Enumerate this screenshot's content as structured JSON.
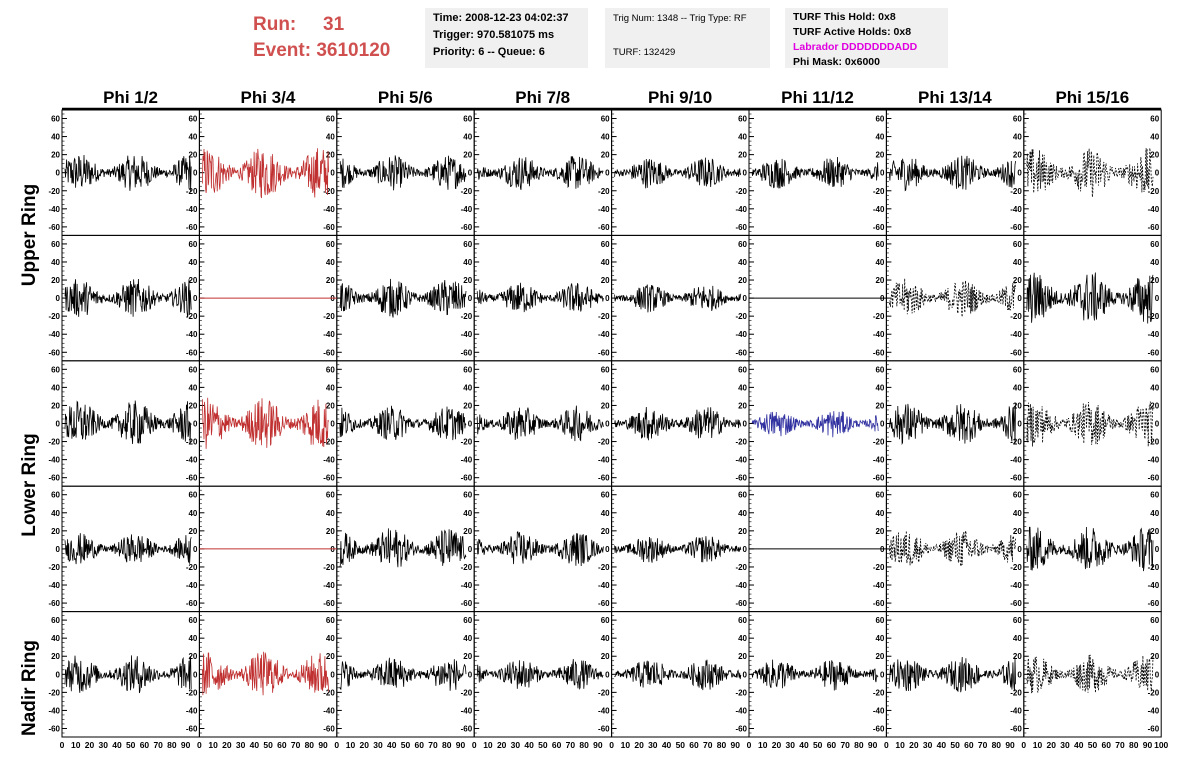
{
  "header": {
    "run_label": "Run:",
    "run_value": "31",
    "event_label": "Event:",
    "event_value": "3610120",
    "time": "Time: 2008-12-23 04:02:37",
    "trigger": "Trigger: 970.581075 ms",
    "priority": "Priority: 6 -- Queue: 6",
    "trig_num": "Trig Num: 1348 -- Trig Type: RF",
    "turf": "TURF: 132429",
    "turf_this_hold": "TURF This Hold: 0x8",
    "turf_active_holds": "TURF Active Holds: 0x8",
    "labrador": "Labrador DDDDDDDADD",
    "phi_mask": "Phi Mask: 0x6000",
    "labrador_color": "#e000e0",
    "run_color": "#d05050"
  },
  "columns": [
    "Phi 1/2",
    "Phi 3/4",
    "Phi 5/6",
    "Phi 7/8",
    "Phi 9/10",
    "Phi 11/12",
    "Phi 13/14",
    "Phi 15/16"
  ],
  "rows": [
    {
      "label": "Upper Ring"
    },
    {
      "label": "Lower Ring"
    },
    {
      "label": "Nadir Ring"
    }
  ],
  "chart_data": {
    "type": "line",
    "y_ticks": [
      "-60",
      "-40",
      "-20",
      "0",
      "20",
      "40",
      "60"
    ],
    "ylim": [
      -65,
      65
    ],
    "x_tick_labels": [
      "0",
      "10",
      "20",
      "30",
      "40",
      "50",
      "60",
      "70",
      "80",
      "90",
      "100"
    ],
    "xlim": [
      0,
      100
    ],
    "grid_rows": 5,
    "grid_cols": 8,
    "colors": {
      "normal": "#000000",
      "highlight_red": "#c03030",
      "highlight_blue": "#3030a0"
    },
    "panels": [
      {
        "row": 0,
        "col": 0,
        "style": "solid",
        "color": "normal",
        "amp": 22
      },
      {
        "row": 0,
        "col": 1,
        "style": "solid",
        "color": "highlight_red",
        "amp": 30
      },
      {
        "row": 0,
        "col": 2,
        "style": "solid",
        "color": "normal",
        "amp": 20
      },
      {
        "row": 0,
        "col": 3,
        "style": "solid",
        "color": "normal",
        "amp": 20
      },
      {
        "row": 0,
        "col": 4,
        "style": "solid",
        "color": "normal",
        "amp": 18
      },
      {
        "row": 0,
        "col": 5,
        "style": "solid",
        "color": "normal",
        "amp": 18
      },
      {
        "row": 0,
        "col": 6,
        "style": "solid",
        "color": "normal",
        "amp": 20
      },
      {
        "row": 0,
        "col": 7,
        "style": "dashed",
        "color": "normal",
        "amp": 28
      },
      {
        "row": 1,
        "col": 0,
        "style": "solid",
        "color": "normal",
        "amp": 22
      },
      {
        "row": 1,
        "col": 1,
        "style": "flat",
        "color": "highlight_red",
        "amp": 0
      },
      {
        "row": 1,
        "col": 2,
        "style": "solid",
        "color": "normal",
        "amp": 22
      },
      {
        "row": 1,
        "col": 3,
        "style": "solid",
        "color": "normal",
        "amp": 18
      },
      {
        "row": 1,
        "col": 4,
        "style": "solid",
        "color": "normal",
        "amp": 16
      },
      {
        "row": 1,
        "col": 5,
        "style": "flat",
        "color": "normal",
        "amp": 0
      },
      {
        "row": 1,
        "col": 6,
        "style": "dashed",
        "color": "normal",
        "amp": 22
      },
      {
        "row": 1,
        "col": 7,
        "style": "solid",
        "color": "normal",
        "amp": 30
      },
      {
        "row": 2,
        "col": 0,
        "style": "solid",
        "color": "normal",
        "amp": 26
      },
      {
        "row": 2,
        "col": 1,
        "style": "solid",
        "color": "highlight_red",
        "amp": 30
      },
      {
        "row": 2,
        "col": 2,
        "style": "solid",
        "color": "normal",
        "amp": 20
      },
      {
        "row": 2,
        "col": 3,
        "style": "solid",
        "color": "normal",
        "amp": 20
      },
      {
        "row": 2,
        "col": 4,
        "style": "solid",
        "color": "normal",
        "amp": 20
      },
      {
        "row": 2,
        "col": 5,
        "style": "solid",
        "color": "highlight_blue",
        "amp": 16
      },
      {
        "row": 2,
        "col": 6,
        "style": "solid",
        "color": "normal",
        "amp": 24
      },
      {
        "row": 2,
        "col": 7,
        "style": "dashed",
        "color": "normal",
        "amp": 26
      },
      {
        "row": 3,
        "col": 0,
        "style": "solid",
        "color": "normal",
        "amp": 18
      },
      {
        "row": 3,
        "col": 1,
        "style": "flat",
        "color": "highlight_red",
        "amp": 0
      },
      {
        "row": 3,
        "col": 2,
        "style": "solid",
        "color": "normal",
        "amp": 24
      },
      {
        "row": 3,
        "col": 3,
        "style": "solid",
        "color": "normal",
        "amp": 20
      },
      {
        "row": 3,
        "col": 4,
        "style": "solid",
        "color": "normal",
        "amp": 16
      },
      {
        "row": 3,
        "col": 5,
        "style": "flat",
        "color": "normal",
        "amp": 0
      },
      {
        "row": 3,
        "col": 6,
        "style": "dashed",
        "color": "normal",
        "amp": 22
      },
      {
        "row": 3,
        "col": 7,
        "style": "solid",
        "color": "normal",
        "amp": 26
      },
      {
        "row": 4,
        "col": 0,
        "style": "solid",
        "color": "normal",
        "amp": 22
      },
      {
        "row": 4,
        "col": 1,
        "style": "solid",
        "color": "highlight_red",
        "amp": 26
      },
      {
        "row": 4,
        "col": 2,
        "style": "solid",
        "color": "normal",
        "amp": 20
      },
      {
        "row": 4,
        "col": 3,
        "style": "solid",
        "color": "normal",
        "amp": 18
      },
      {
        "row": 4,
        "col": 4,
        "style": "solid",
        "color": "normal",
        "amp": 18
      },
      {
        "row": 4,
        "col": 5,
        "style": "solid",
        "color": "normal",
        "amp": 18
      },
      {
        "row": 4,
        "col": 6,
        "style": "solid",
        "color": "normal",
        "amp": 20
      },
      {
        "row": 4,
        "col": 7,
        "style": "dashed",
        "color": "normal",
        "amp": 22
      }
    ]
  }
}
